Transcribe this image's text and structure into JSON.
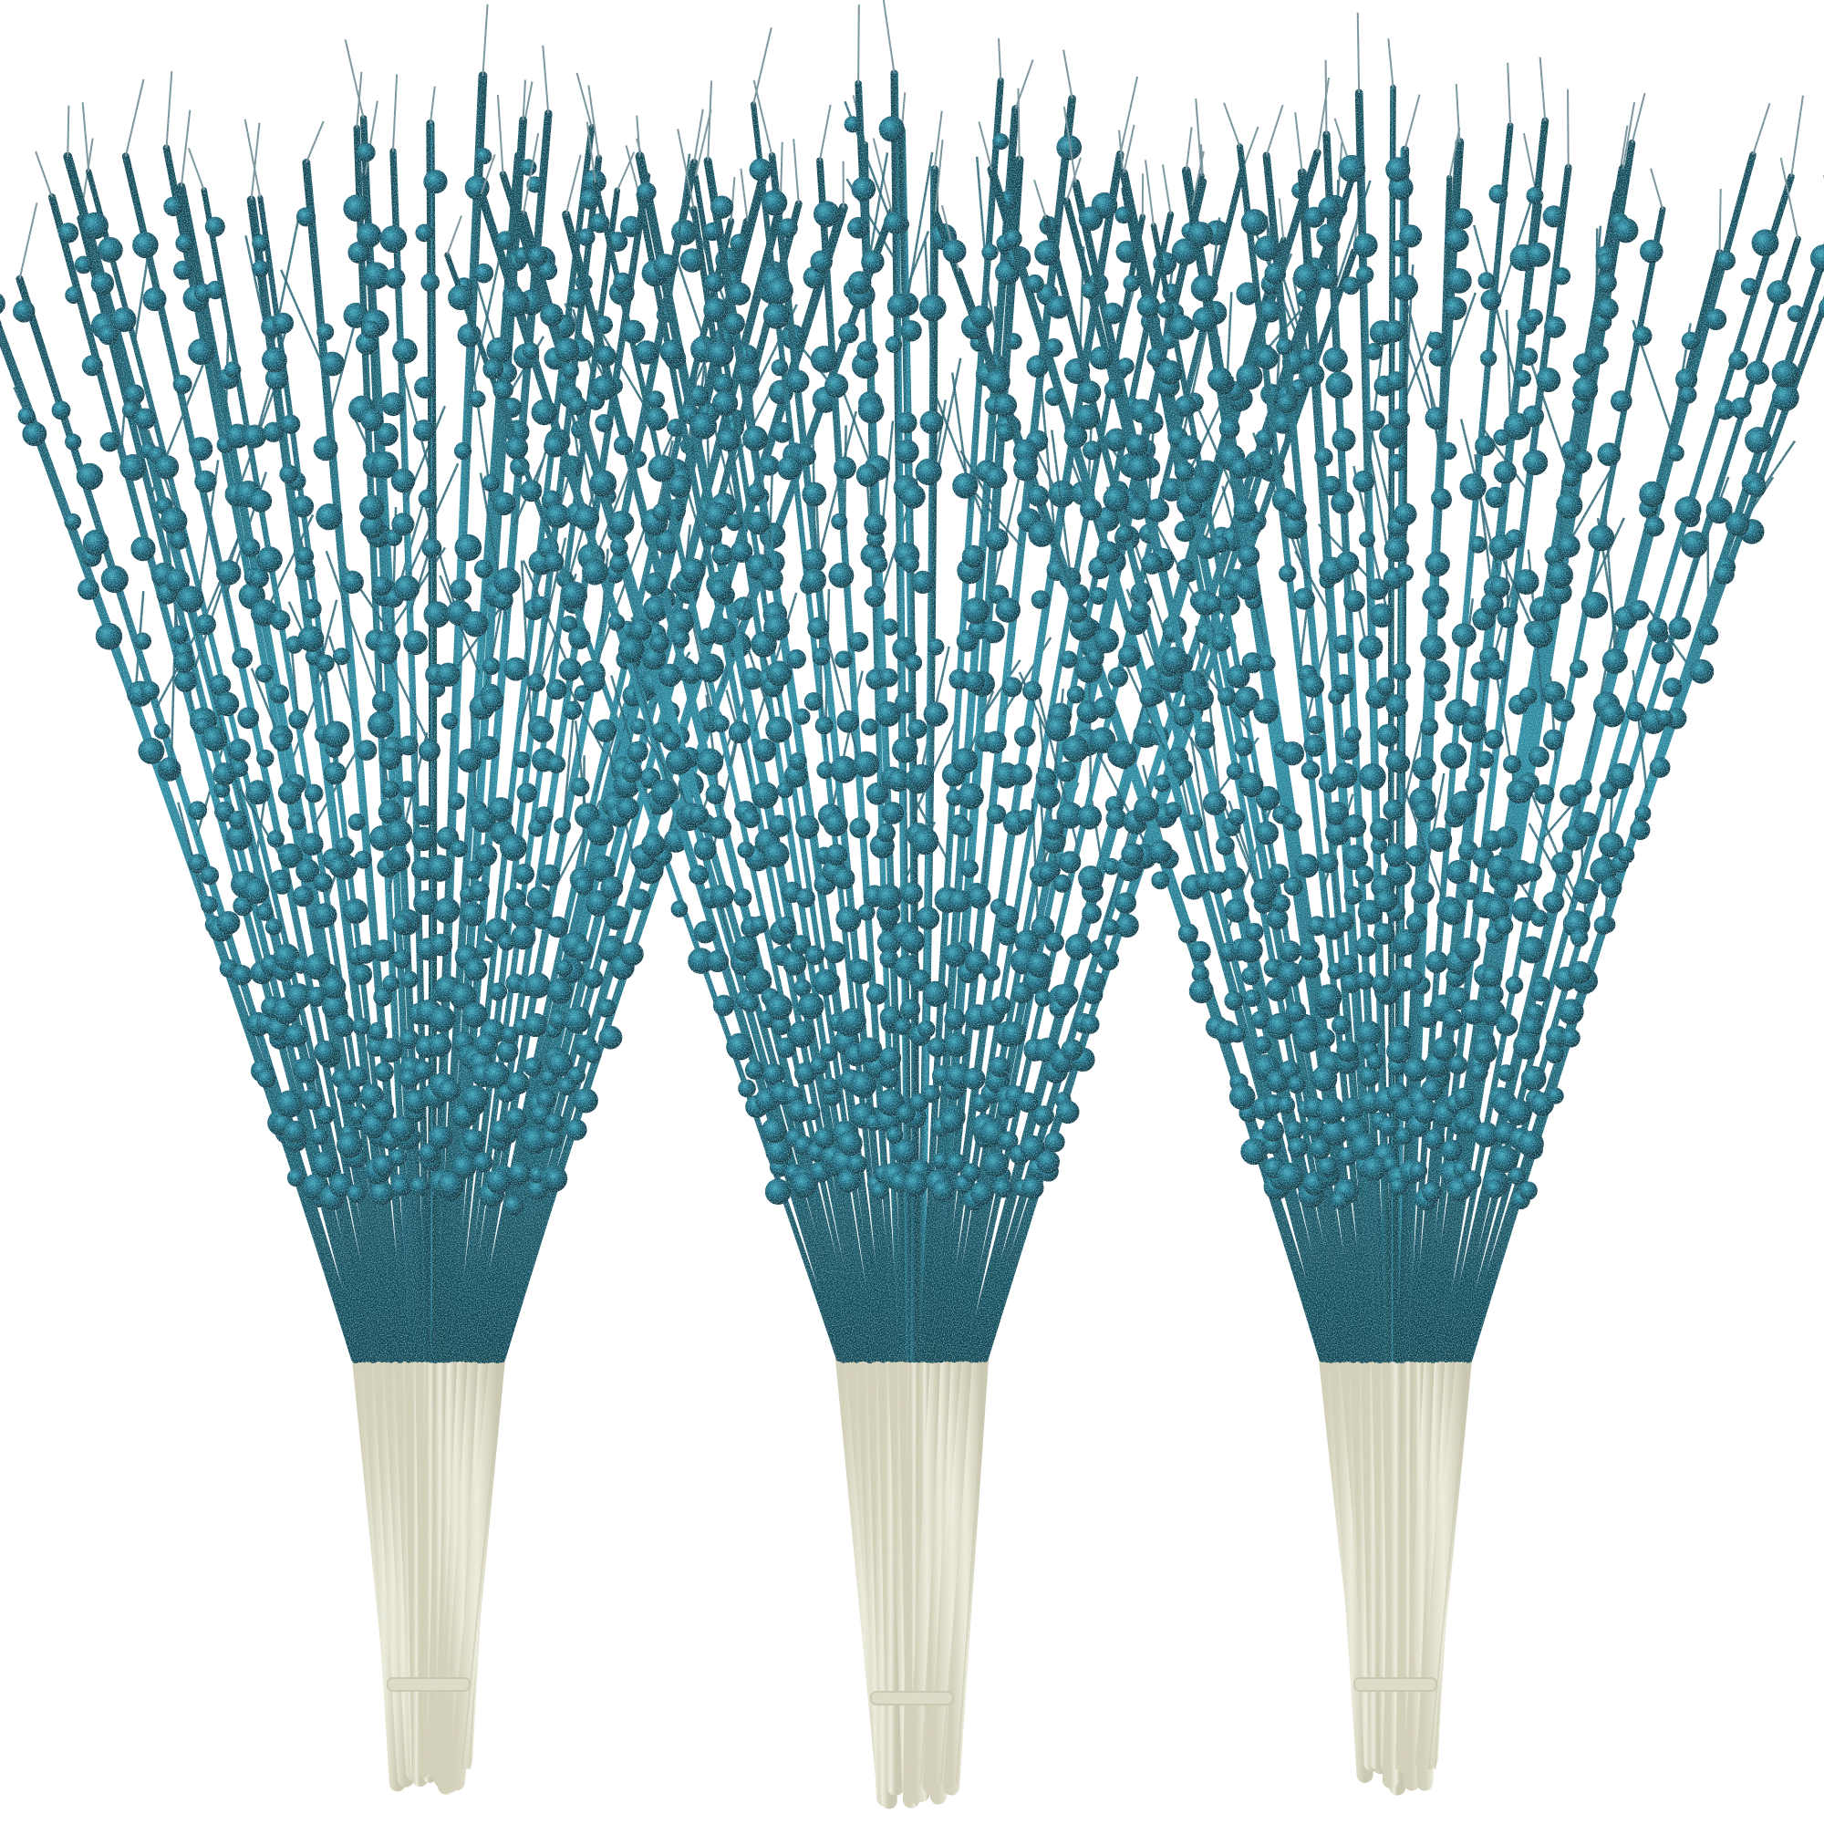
{
  "image": {
    "subject": "glitter-berry-picks",
    "bundle_count": 3,
    "colors": {
      "background": "#ffffff",
      "glitter_light": "#2a8aa0",
      "glitter_mid": "#176a80",
      "glitter_dark": "#0b3442",
      "stem_wrap": "#efe8d3",
      "stem_shadow": "#cfc6aa",
      "wire": "#7a8e95"
    }
  }
}
